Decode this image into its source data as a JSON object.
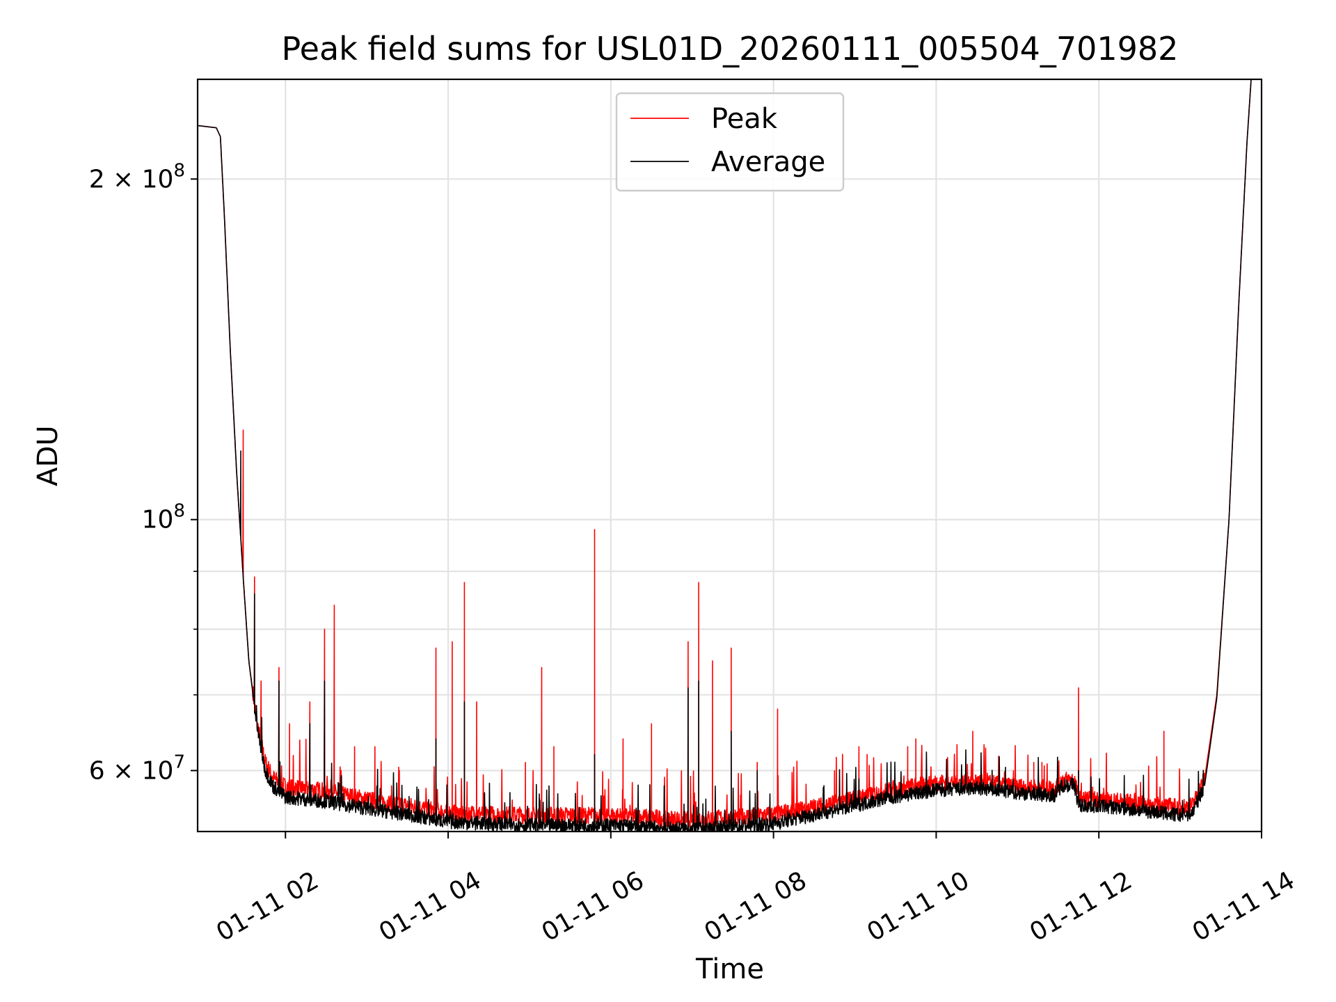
{
  "chart_data": {
    "type": "line",
    "title": "Peak field sums for USL01D_20260111_005504_701982",
    "xlabel": "Time",
    "ylabel": "ADU",
    "yscale": "log",
    "ylim": [
      53000000,
      245000000
    ],
    "xlim_hours": [
      0.92,
      14.0
    ],
    "grid": true,
    "legend_position": "upper center",
    "x_ticks": [
      {
        "value": 2,
        "label": "01-11 02"
      },
      {
        "value": 4,
        "label": "01-11 04"
      },
      {
        "value": 6,
        "label": "01-11 06"
      },
      {
        "value": 8,
        "label": "01-11 08"
      },
      {
        "value": 10,
        "label": "01-11 10"
      },
      {
        "value": 12,
        "label": "01-11 12"
      },
      {
        "value": 14,
        "label": "01-11 14"
      }
    ],
    "y_ticks": [
      {
        "value": 60000000,
        "mantissa": "6",
        "exponent": "7"
      },
      {
        "value": 100000000,
        "mantissa": "",
        "exponent": "8"
      },
      {
        "value": 200000000,
        "mantissa": "2",
        "exponent": "8"
      }
    ],
    "y_minor_gridlines": [
      70000000,
      80000000,
      90000000
    ],
    "series": [
      {
        "name": "Peak",
        "color": "#ff0000",
        "baseline": [
          [
            0.92,
            223000000.0
          ],
          [
            1.15,
            222000000.0
          ],
          [
            1.2,
            218000000.0
          ],
          [
            1.25,
            185000000.0
          ],
          [
            1.32,
            142000000.0
          ],
          [
            1.4,
            110000000.0
          ],
          [
            1.48,
            89000000.0
          ],
          [
            1.55,
            75000000.0
          ],
          [
            1.65,
            66000000.0
          ],
          [
            1.75,
            61000000.0
          ],
          [
            1.85,
            59000000.0
          ],
          [
            2.0,
            58000000.0
          ],
          [
            2.5,
            57500000.0
          ],
          [
            3.0,
            56500000.0
          ],
          [
            3.5,
            55800000.0
          ],
          [
            4.0,
            55000000.0
          ],
          [
            5.0,
            54700000.0
          ],
          [
            6.0,
            54700000.0
          ],
          [
            7.0,
            54200000.0
          ],
          [
            8.0,
            54800000.0
          ],
          [
            8.6,
            55800000.0
          ],
          [
            9.4,
            57500000.0
          ],
          [
            10.0,
            58500000.0
          ],
          [
            10.5,
            58600000.0
          ],
          [
            11.0,
            58000000.0
          ],
          [
            11.45,
            57800000.0
          ],
          [
            11.55,
            58800000.0
          ],
          [
            11.7,
            58800000.0
          ],
          [
            11.75,
            56600000.0
          ],
          [
            12.0,
            56500000.0
          ],
          [
            12.6,
            56000000.0
          ],
          [
            13.0,
            55600000.0
          ],
          [
            13.15,
            55800000.0
          ],
          [
            13.3,
            59000000.0
          ],
          [
            13.45,
            70000000.0
          ],
          [
            13.6,
            100000000.0
          ],
          [
            13.72,
            155000000.0
          ],
          [
            13.82,
            215000000.0
          ],
          [
            13.88,
            250000000.0
          ]
        ],
        "spikes": [
          [
            1.48,
            120000000.0
          ],
          [
            1.62,
            89000000.0
          ],
          [
            1.7,
            72000000.0
          ],
          [
            1.92,
            74000000.0
          ],
          [
            2.05,
            66000000.0
          ],
          [
            2.3,
            69000000.0
          ],
          [
            2.48,
            80000000.0
          ],
          [
            2.6,
            84000000.0
          ],
          [
            2.85,
            63000000.0
          ],
          [
            3.1,
            63000000.0
          ],
          [
            3.4,
            60000000.0
          ],
          [
            3.85,
            77000000.0
          ],
          [
            4.05,
            78000000.0
          ],
          [
            4.2,
            88000000.0
          ],
          [
            4.35,
            69000000.0
          ],
          [
            4.95,
            61000000.0
          ],
          [
            5.15,
            74000000.0
          ],
          [
            5.3,
            63000000.0
          ],
          [
            5.8,
            98000000.0
          ],
          [
            6.15,
            64000000.0
          ],
          [
            6.5,
            66000000.0
          ],
          [
            6.95,
            78000000.0
          ],
          [
            7.08,
            88000000.0
          ],
          [
            7.25,
            75000000.0
          ],
          [
            7.48,
            77000000.0
          ],
          [
            7.8,
            61000000.0
          ],
          [
            8.05,
            68000000.0
          ],
          [
            8.75,
            60000000.0
          ],
          [
            9.05,
            63000000.0
          ],
          [
            9.15,
            62000000.0
          ],
          [
            9.65,
            63000000.0
          ],
          [
            9.75,
            64000000.0
          ],
          [
            10.0,
            59000000.0
          ],
          [
            10.45,
            65000000.0
          ],
          [
            10.95,
            60000000.0
          ],
          [
            11.2,
            61000000.0
          ],
          [
            11.3,
            61000000.0
          ],
          [
            11.75,
            71000000.0
          ],
          [
            12.8,
            65000000.0
          ]
        ]
      },
      {
        "name": "Average",
        "color": "#000000",
        "baseline": [
          [
            0.92,
            223000000.0
          ],
          [
            1.15,
            222000000.0
          ],
          [
            1.2,
            218000000.0
          ],
          [
            1.25,
            185000000.0
          ],
          [
            1.32,
            142000000.0
          ],
          [
            1.4,
            110000000.0
          ],
          [
            1.48,
            89000000.0
          ],
          [
            1.55,
            75000000.0
          ],
          [
            1.65,
            65500000.0
          ],
          [
            1.75,
            60000000.0
          ],
          [
            1.85,
            58000000.0
          ],
          [
            2.0,
            56800000.0
          ],
          [
            2.5,
            56300000.0
          ],
          [
            3.0,
            55500000.0
          ],
          [
            3.5,
            54800000.0
          ],
          [
            4.0,
            54000000.0
          ],
          [
            5.0,
            53600000.0
          ],
          [
            6.0,
            53600000.0
          ],
          [
            7.0,
            53200000.0
          ],
          [
            8.0,
            53800000.0
          ],
          [
            8.6,
            55000000.0
          ],
          [
            9.4,
            56700000.0
          ],
          [
            10.0,
            57600000.0
          ],
          [
            10.5,
            57800000.0
          ],
          [
            11.0,
            57300000.0
          ],
          [
            11.45,
            57000000.0
          ],
          [
            11.55,
            58200000.0
          ],
          [
            11.7,
            58200000.0
          ],
          [
            11.75,
            55800000.0
          ],
          [
            12.0,
            55800000.0
          ],
          [
            12.6,
            55200000.0
          ],
          [
            13.0,
            54700000.0
          ],
          [
            13.15,
            55000000.0
          ],
          [
            13.3,
            58200000.0
          ],
          [
            13.45,
            69500000.0
          ],
          [
            13.6,
            100000000.0
          ],
          [
            13.72,
            155000000.0
          ],
          [
            13.82,
            215000000.0
          ],
          [
            13.88,
            250000000.0
          ]
        ],
        "spikes": [
          [
            1.45,
            115000000.0
          ],
          [
            1.62,
            86000000.0
          ],
          [
            1.92,
            72000000.0
          ],
          [
            2.3,
            66000000.0
          ],
          [
            2.48,
            72000000.0
          ],
          [
            3.85,
            64000000.0
          ],
          [
            4.2,
            69000000.0
          ],
          [
            5.8,
            62000000.0
          ],
          [
            6.95,
            71000000.0
          ],
          [
            7.08,
            72000000.0
          ],
          [
            7.48,
            65000000.0
          ],
          [
            7.8,
            60000000.0
          ],
          [
            9.05,
            59000000.0
          ],
          [
            11.75,
            60000000.0
          ],
          [
            13.8,
            200000000.0
          ]
        ]
      }
    ]
  }
}
